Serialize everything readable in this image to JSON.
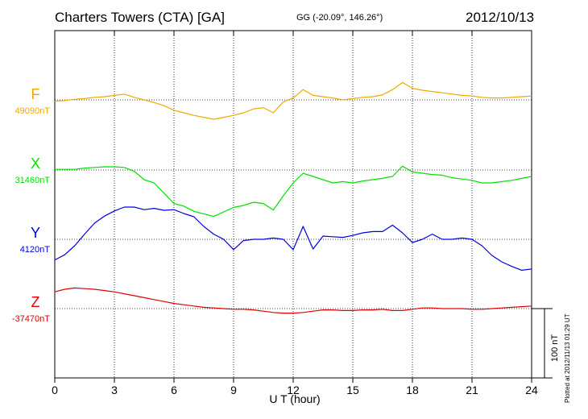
{
  "header": {
    "station": "Charters Towers (CTA)  [GA]",
    "coords": "GG (-20.09°, 146.26°)",
    "date": "2012/10/13"
  },
  "footnote": "Plotted at 2012/11/13 01:29 UT",
  "chart_data": {
    "type": "line",
    "xlabel": "U T (hour)",
    "xlim": [
      0,
      24
    ],
    "xticks": [
      "0",
      "3",
      "6",
      "9",
      "12",
      "15",
      "18",
      "21",
      "24"
    ],
    "scale_bar": "100 nT",
    "grid": true,
    "series": [
      {
        "name": "F",
        "baseline": "49090nT",
        "color": "#f0a800",
        "x": [
          0,
          0.5,
          1,
          1.5,
          2,
          2.5,
          3,
          3.5,
          4,
          4.5,
          5,
          5.5,
          6,
          6.5,
          7,
          7.5,
          8,
          8.5,
          9,
          9.5,
          10,
          10.5,
          11,
          11.5,
          12,
          12.5,
          13,
          13.5,
          14,
          14.5,
          15,
          15.5,
          16,
          16.5,
          17,
          17.5,
          18,
          18.5,
          19,
          19.5,
          20,
          20.5,
          21,
          21.5,
          22,
          22.5,
          23,
          23.5,
          24
        ],
        "y": [
          -2,
          -1,
          1,
          2,
          4,
          5,
          7,
          9,
          4,
          0,
          -4,
          -9,
          -16,
          -20,
          -24,
          -27,
          -30,
          -27,
          -24,
          -20,
          -14,
          -12,
          -20,
          -3,
          3,
          16,
          7,
          5,
          3,
          0,
          2,
          4,
          5,
          8,
          16,
          27,
          18,
          15,
          13,
          11,
          9,
          7,
          6,
          4,
          3,
          3,
          4,
          5,
          6
        ]
      },
      {
        "name": "X",
        "baseline": "31460nT",
        "color": "#00e000",
        "x": [
          0,
          0.5,
          1,
          1.5,
          2,
          2.5,
          3,
          3.5,
          4,
          4.5,
          5,
          5.5,
          6,
          6.5,
          7,
          7.5,
          8,
          8.5,
          9,
          9.5,
          10,
          10.5,
          11,
          11.5,
          12,
          12.5,
          13,
          13.5,
          14,
          14.5,
          15,
          15.5,
          16,
          16.5,
          17,
          17.5,
          18,
          18.5,
          19,
          19.5,
          20,
          20.5,
          21,
          21.5,
          22,
          22.5,
          23,
          23.5,
          24
        ],
        "y": [
          1,
          1,
          1,
          3,
          4,
          5,
          5,
          4,
          -2,
          -15,
          -20,
          -36,
          -52,
          -56,
          -64,
          -68,
          -72,
          -65,
          -58,
          -55,
          -50,
          -52,
          -62,
          -40,
          -20,
          -5,
          -10,
          -15,
          -20,
          -18,
          -20,
          -17,
          -15,
          -13,
          -10,
          6,
          -3,
          -5,
          -7,
          -8,
          -12,
          -14,
          -16,
          -20,
          -20,
          -18,
          -16,
          -13,
          -10
        ]
      },
      {
        "name": "Y",
        "baseline": "4120nT",
        "color": "#0000e0",
        "x": [
          0,
          0.5,
          1,
          1.5,
          2,
          2.5,
          3,
          3.5,
          4,
          4.5,
          5,
          5.5,
          6,
          6.5,
          7,
          7.5,
          8,
          8.5,
          9,
          9.5,
          10,
          10.5,
          11,
          11.5,
          12,
          12.5,
          13,
          13.5,
          14,
          14.5,
          15,
          15.5,
          16,
          16.5,
          17,
          17.5,
          18,
          18.5,
          19,
          19.5,
          20,
          20.5,
          21,
          21.5,
          22,
          22.5,
          23,
          23.5,
          24
        ],
        "y": [
          -32,
          -24,
          -10,
          8,
          25,
          36,
          44,
          50,
          50,
          46,
          48,
          45,
          46,
          40,
          35,
          20,
          8,
          0,
          -16,
          -2,
          0,
          0,
          2,
          0,
          -16,
          20,
          -15,
          5,
          4,
          3,
          6,
          10,
          12,
          12,
          22,
          10,
          -5,
          0,
          8,
          0,
          0,
          2,
          0,
          -10,
          -25,
          -35,
          -42,
          -48,
          -46
        ]
      },
      {
        "name": "Z",
        "baseline": "-37470nT",
        "color": "#e00000",
        "x": [
          0,
          0.5,
          1,
          1.5,
          2,
          2.5,
          3,
          3.5,
          4,
          4.5,
          5,
          5.5,
          6,
          6.5,
          7,
          7.5,
          8,
          8.5,
          9,
          9.5,
          10,
          10.5,
          11,
          11.5,
          12,
          12.5,
          13,
          13.5,
          14,
          14.5,
          15,
          15.5,
          16,
          16.5,
          17,
          17.5,
          18,
          18.5,
          19,
          19.5,
          20,
          20.5,
          21,
          21.5,
          22,
          22.5,
          23,
          23.5,
          24
        ],
        "y": [
          26,
          30,
          32,
          31,
          30,
          28,
          26,
          23,
          20,
          17,
          14,
          11,
          8,
          6,
          4,
          2,
          1,
          0,
          -1,
          -1,
          -2,
          -4,
          -6,
          -7,
          -7,
          -6,
          -4,
          -2,
          -2,
          -3,
          -3,
          -2,
          -2,
          -1,
          -3,
          -3,
          -1,
          1,
          1,
          0,
          0,
          0,
          -1,
          -1,
          0,
          1,
          2,
          3,
          4
        ]
      }
    ]
  }
}
